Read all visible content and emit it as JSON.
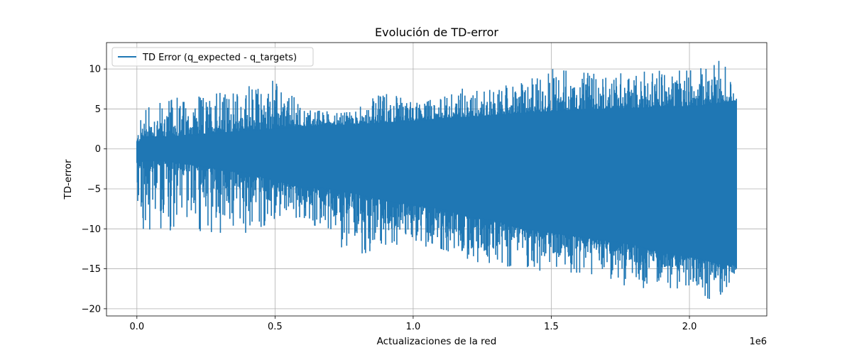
{
  "chart_data": {
    "type": "line",
    "title": "Evolución de TD-error",
    "xlabel": "Actualizaciones de la red",
    "ylabel": "TD-error",
    "x_offset_label": "1e6",
    "xlim": [
      -0.11,
      2.28
    ],
    "ylim": [
      -20.9,
      13.3
    ],
    "x_ticks": [
      0.0,
      0.5,
      1.0,
      1.5,
      2.0
    ],
    "x_tick_labels": [
      "0.0",
      "0.5",
      "1.0",
      "1.5",
      "2.0"
    ],
    "y_ticks": [
      -20,
      -15,
      -10,
      -5,
      0,
      5,
      10
    ],
    "y_tick_labels": [
      "−20",
      "−15",
      "−10",
      "−5",
      "0",
      "5",
      "10"
    ],
    "grid": true,
    "legend_position": "top-left",
    "series": [
      {
        "name": "TD Error (q_expected - q_targets)",
        "color": "#1f77b4",
        "x": [
          0.0,
          0.02,
          0.05,
          0.1,
          0.2,
          0.3,
          0.4,
          0.5,
          0.6,
          0.7,
          0.78,
          0.9,
          1.0,
          1.1,
          1.2,
          1.3,
          1.4,
          1.5,
          1.6,
          1.7,
          1.8,
          1.9,
          2.0,
          2.07,
          2.12,
          2.16,
          2.17
        ],
        "upper": [
          2.2,
          4.5,
          5.4,
          6.4,
          6.4,
          7.0,
          7.8,
          8.6,
          5.5,
          4.6,
          4.6,
          7.4,
          6.0,
          6.6,
          7.8,
          7.8,
          8.3,
          10.0,
          9.6,
          9.3,
          9.6,
          9.8,
          9.8,
          10.3,
          11.7,
          7.0,
          6.5
        ],
        "lower": [
          -10.4,
          -10.0,
          -10.1,
          -10.2,
          -10.2,
          -10.5,
          -10.5,
          -9.0,
          -8.5,
          -11.0,
          -13.7,
          -12.0,
          -12.0,
          -12.5,
          -14.0,
          -14.5,
          -15.0,
          -15.4,
          -15.5,
          -16.3,
          -17.5,
          -17.4,
          -17.5,
          -18.8,
          -18.5,
          -16.0,
          -15.0
        ],
        "dense_upper": [
          0.5,
          1.5,
          1.5,
          1.5,
          1.7,
          2.0,
          2.3,
          2.5,
          2.8,
          3.0,
          3.0,
          3.3,
          3.5,
          3.8,
          4.0,
          4.2,
          4.5,
          4.7,
          4.9,
          5.0,
          5.1,
          5.2,
          5.3,
          5.5,
          5.8,
          6.0,
          6.0
        ],
        "dense_lower": [
          -1.5,
          -1.5,
          -1.5,
          -1.5,
          -2.0,
          -2.5,
          -3.0,
          -4.0,
          -4.8,
          -5.0,
          -5.5,
          -6.5,
          -7.0,
          -7.5,
          -8.5,
          -9.0,
          -10.0,
          -10.5,
          -11.0,
          -11.5,
          -12.0,
          -13.0,
          -13.5,
          -14.0,
          -14.5,
          -14.5,
          -14.5
        ]
      }
    ]
  }
}
